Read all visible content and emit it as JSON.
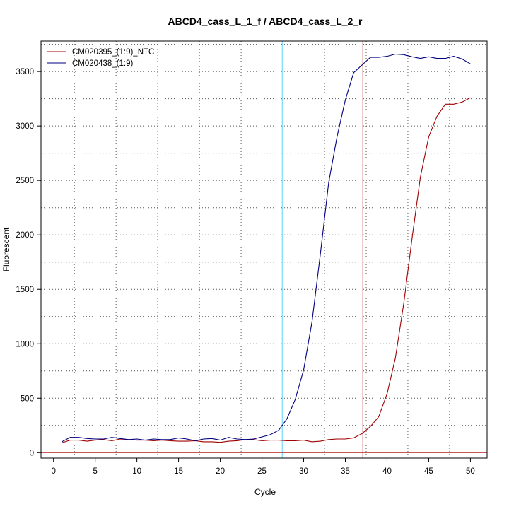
{
  "chart_data": {
    "type": "line",
    "title": "ABCD4_cass_L_1_f / ABCD4_cass_L_2_r",
    "xlabel": "Cycle",
    "ylabel": "Fluorescent",
    "xlim": [
      -1.5,
      52
    ],
    "ylim": [
      -50,
      3780
    ],
    "x_ticks": [
      0,
      5,
      10,
      15,
      20,
      25,
      30,
      35,
      40,
      45,
      50
    ],
    "y_ticks": [
      0,
      500,
      1000,
      1500,
      2000,
      2500,
      3000,
      3500
    ],
    "grid": "dotted",
    "legend_position": "top-left",
    "threshold_y": 0,
    "vertical_lines": [
      {
        "x": 27.3,
        "color": "#00bfff"
      },
      {
        "x": 27.5,
        "color": "#00bfff"
      },
      {
        "x": 37.1,
        "color": "#b22222"
      }
    ],
    "series": [
      {
        "name": "CM020395_(1:9)_NTC",
        "color": "#a00000",
        "x": [
          1,
          2,
          3,
          4,
          5,
          6,
          7,
          8,
          9,
          10,
          11,
          12,
          13,
          14,
          15,
          16,
          17,
          18,
          19,
          20,
          21,
          22,
          23,
          24,
          25,
          26,
          27,
          28,
          29,
          30,
          31,
          32,
          33,
          34,
          35,
          36,
          37,
          38,
          39,
          40,
          41,
          42,
          43,
          44,
          45,
          46,
          47,
          48,
          49,
          50
        ],
        "y": [
          90,
          115,
          115,
          105,
          115,
          120,
          110,
          125,
          120,
          115,
          115,
          110,
          115,
          110,
          105,
          105,
          110,
          100,
          100,
          95,
          105,
          110,
          120,
          120,
          110,
          115,
          115,
          110,
          110,
          115,
          100,
          105,
          120,
          125,
          125,
          135,
          175,
          240,
          330,
          540,
          870,
          1370,
          1970,
          2530,
          2900,
          3090,
          3200,
          3200,
          3220,
          3260
        ]
      },
      {
        "name": "CM020438_(1:9)",
        "color": "#000080",
        "x": [
          1,
          2,
          3,
          4,
          5,
          6,
          7,
          8,
          9,
          10,
          11,
          12,
          13,
          14,
          15,
          16,
          17,
          18,
          19,
          20,
          21,
          22,
          23,
          24,
          25,
          26,
          27,
          28,
          29,
          30,
          31,
          32,
          33,
          34,
          35,
          36,
          37,
          38,
          39,
          40,
          41,
          42,
          43,
          44,
          45,
          46,
          47,
          48,
          49,
          50
        ],
        "y": [
          100,
          140,
          140,
          130,
          125,
          125,
          140,
          130,
          120,
          125,
          115,
          125,
          120,
          120,
          135,
          125,
          110,
          125,
          130,
          115,
          140,
          125,
          120,
          125,
          145,
          165,
          205,
          310,
          490,
          760,
          1200,
          1820,
          2480,
          2900,
          3240,
          3490,
          3560,
          3630,
          3630,
          3640,
          3660,
          3655,
          3635,
          3620,
          3635,
          3620,
          3620,
          3640,
          3615,
          3570
        ]
      }
    ]
  }
}
